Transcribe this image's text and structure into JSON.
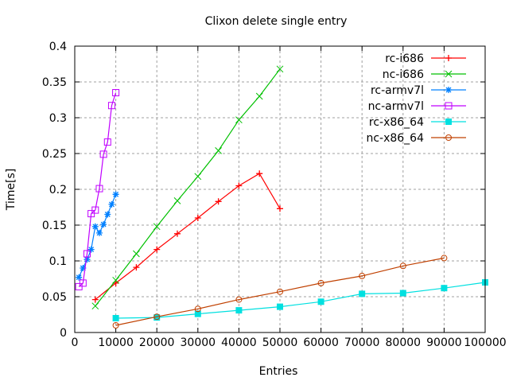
{
  "chart_data": {
    "type": "line",
    "title": "Clixon delete single entry",
    "xlabel": "Entries",
    "ylabel": "Time[s]",
    "xlim": [
      0,
      100000
    ],
    "ylim": [
      0,
      0.4
    ],
    "xticks": [
      0,
      10000,
      20000,
      30000,
      40000,
      50000,
      60000,
      70000,
      80000,
      90000,
      100000
    ],
    "yticks": [
      0,
      0.05,
      0.1,
      0.15,
      0.2,
      0.25,
      0.3,
      0.35,
      0.4
    ],
    "xtick_labels": [
      "0",
      "10000",
      "20000",
      "30000",
      "40000",
      "50000",
      "60000",
      "70000",
      "80000",
      "90000",
      "100000"
    ],
    "ytick_labels": [
      "0",
      "0.05",
      "0.1",
      "0.15",
      "0.2",
      "0.25",
      "0.3",
      "0.35",
      "0.4"
    ],
    "grid": true,
    "legend_placement": "top-right",
    "series": [
      {
        "name": "rc-i686",
        "color": "#ff0000",
        "marker": "plus",
        "x": [
          5000,
          10000,
          15000,
          20000,
          25000,
          30000,
          35000,
          40000,
          45000,
          50000
        ],
        "y": [
          0.046,
          0.069,
          0.091,
          0.116,
          0.138,
          0.16,
          0.183,
          0.205,
          0.222,
          0.173
        ]
      },
      {
        "name": "nc-i686",
        "color": "#00c000",
        "marker": "cross",
        "x": [
          5000,
          10000,
          15000,
          20000,
          25000,
          30000,
          35000,
          40000,
          45000,
          50000
        ],
        "y": [
          0.037,
          0.073,
          0.11,
          0.148,
          0.184,
          0.218,
          0.254,
          0.297,
          0.33,
          0.368
        ]
      },
      {
        "name": "rc-armv7l",
        "color": "#0080ff",
        "marker": "star",
        "x": [
          1000,
          2000,
          3000,
          4000,
          5000,
          6000,
          7000,
          8000,
          9000,
          10000
        ],
        "y": [
          0.077,
          0.09,
          0.102,
          0.116,
          0.148,
          0.139,
          0.151,
          0.165,
          0.179,
          0.193
        ]
      },
      {
        "name": "nc-armv7l",
        "color": "#c000ff",
        "marker": "box",
        "x": [
          1000,
          2000,
          3000,
          4000,
          5000,
          6000,
          7000,
          8000,
          9000,
          10000
        ],
        "y": [
          0.064,
          0.069,
          0.11,
          0.166,
          0.171,
          0.201,
          0.249,
          0.266,
          0.317,
          0.335
        ]
      },
      {
        "name": "rc-x86_64",
        "color": "#00e0e0",
        "marker": "filled-box",
        "x": [
          10000,
          20000,
          30000,
          40000,
          50000,
          60000,
          70000,
          80000,
          90000,
          100000
        ],
        "y": [
          0.02,
          0.021,
          0.026,
          0.031,
          0.036,
          0.043,
          0.054,
          0.055,
          0.062,
          0.07
        ]
      },
      {
        "name": "nc-x86_64",
        "color": "#c04000",
        "marker": "circle",
        "x": [
          10000,
          20000,
          30000,
          40000,
          50000,
          60000,
          70000,
          80000,
          90000
        ],
        "y": [
          0.01,
          0.022,
          0.033,
          0.046,
          0.057,
          0.069,
          0.079,
          0.093,
          0.104
        ]
      }
    ]
  }
}
